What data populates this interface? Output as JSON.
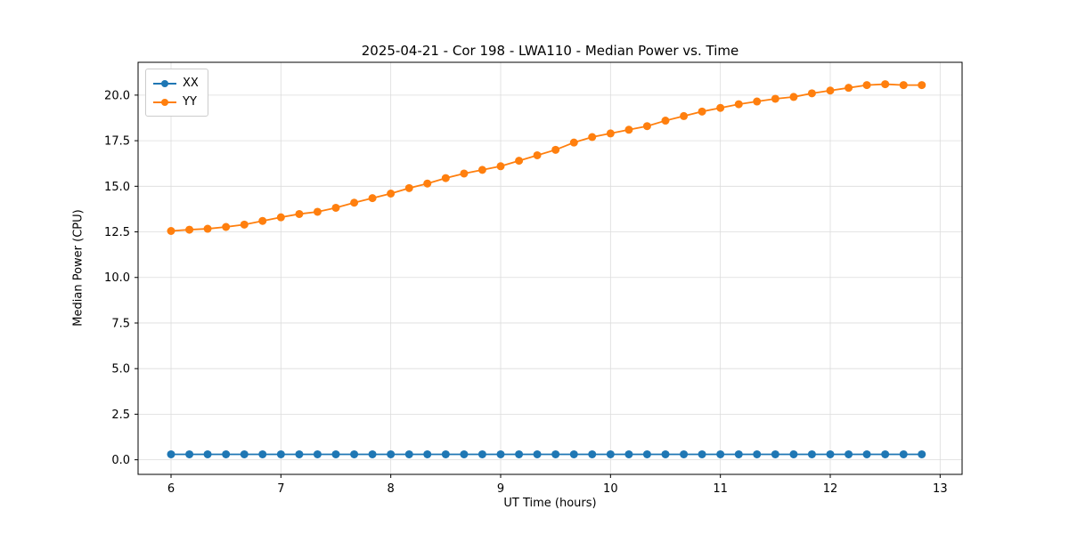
{
  "figure": {
    "title": "2025-04-21 - Cor 198 - LWA110 - Median Power vs. Time",
    "xlabel": "UT Time (hours)",
    "ylabel": "Median Power (CPU)"
  },
  "chart_data": {
    "type": "line",
    "title": "2025-04-21 - Cor 198 - LWA110 - Median Power vs. Time",
    "xlabel": "UT Time (hours)",
    "ylabel": "Median Power (CPU)",
    "grid": true,
    "legend_position": "upper left",
    "marker": "circle",
    "xlim": [
      5.7,
      13.2
    ],
    "ylim": [
      -0.8,
      21.8
    ],
    "xticks": [
      6,
      7,
      8,
      9,
      10,
      11,
      12,
      13
    ],
    "xtick_labels": [
      "6",
      "7",
      "8",
      "9",
      "10",
      "11",
      "12",
      "13"
    ],
    "yticks": [
      0.0,
      2.5,
      5.0,
      7.5,
      10.0,
      12.5,
      15.0,
      17.5,
      20.0
    ],
    "ytick_labels": [
      "0.0",
      "2.5",
      "5.0",
      "7.5",
      "10.0",
      "12.5",
      "15.0",
      "17.5",
      "20.0"
    ],
    "x": [
      6.0,
      6.167,
      6.333,
      6.5,
      6.667,
      6.833,
      7.0,
      7.167,
      7.333,
      7.5,
      7.667,
      7.833,
      8.0,
      8.167,
      8.333,
      8.5,
      8.667,
      8.833,
      9.0,
      9.167,
      9.333,
      9.5,
      9.667,
      9.833,
      10.0,
      10.167,
      10.333,
      10.5,
      10.667,
      10.833,
      11.0,
      11.167,
      11.333,
      11.5,
      11.667,
      11.833,
      12.0,
      12.167,
      12.333,
      12.5,
      12.667,
      12.833
    ],
    "series": [
      {
        "name": "XX",
        "color": "#1f77b4",
        "values": [
          0.3,
          0.3,
          0.3,
          0.3,
          0.3,
          0.3,
          0.3,
          0.3,
          0.3,
          0.3,
          0.3,
          0.3,
          0.3,
          0.3,
          0.3,
          0.3,
          0.3,
          0.3,
          0.3,
          0.3,
          0.3,
          0.3,
          0.3,
          0.3,
          0.3,
          0.3,
          0.3,
          0.3,
          0.3,
          0.3,
          0.3,
          0.3,
          0.3,
          0.3,
          0.3,
          0.3,
          0.3,
          0.3,
          0.3,
          0.3,
          0.3,
          0.3
        ]
      },
      {
        "name": "YY",
        "color": "#ff7f0e",
        "values": [
          12.55,
          12.62,
          12.67,
          12.77,
          12.9,
          13.1,
          13.3,
          13.48,
          13.6,
          13.82,
          14.1,
          14.35,
          14.6,
          14.9,
          15.15,
          15.45,
          15.7,
          15.9,
          16.1,
          16.4,
          16.7,
          17.0,
          17.4,
          17.7,
          17.9,
          18.1,
          18.3,
          18.6,
          18.85,
          19.1,
          19.3,
          19.5,
          19.65,
          19.8,
          19.9,
          20.1,
          20.25,
          20.4,
          20.55,
          20.6,
          20.55,
          20.55
        ]
      }
    ]
  }
}
